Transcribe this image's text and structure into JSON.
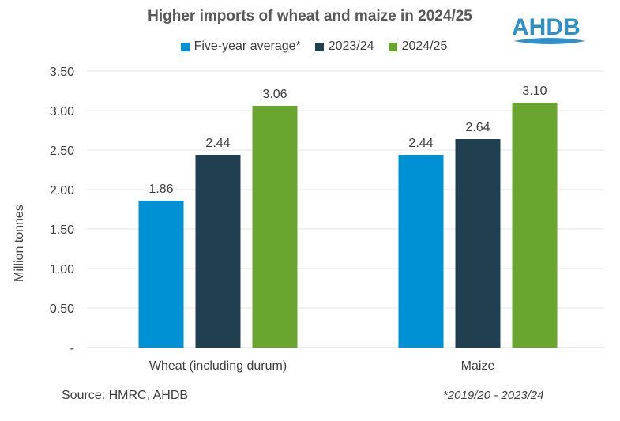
{
  "chart_data": {
    "type": "bar",
    "title": "Higher imports of wheat and maize in 2024/25",
    "categories": [
      "Wheat (including durum)",
      "Maize"
    ],
    "series": [
      {
        "name": "Five-year average*",
        "color": "#0090D4",
        "values": [
          1.86,
          2.44
        ]
      },
      {
        "name": "2023/24",
        "color": "#203F50",
        "values": [
          2.44,
          2.64
        ]
      },
      {
        "name": "2024/25",
        "color": "#6AA530",
        "values": [
          3.06,
          3.1
        ]
      }
    ],
    "data_labels": [
      [
        "1.86",
        "2.44",
        "3.06"
      ],
      [
        "2.44",
        "2.64",
        "3.10"
      ]
    ],
    "ylabel": "Million tonnes",
    "xlabel": "",
    "ylim": [
      0,
      3.5
    ],
    "yticks": [
      0,
      0.5,
      1.0,
      1.5,
      2.0,
      2.5,
      3.0,
      3.5
    ],
    "ytick_labels": [
      "-",
      "0.50",
      "1.00",
      "1.50",
      "2.00",
      "2.50",
      "3.00",
      "3.50"
    ],
    "grid": true,
    "legend_position": "top"
  },
  "logo": {
    "text": "AHDB"
  },
  "source": "Source: HMRC, AHDB",
  "footnote": "*2019/20 - 2023/24"
}
